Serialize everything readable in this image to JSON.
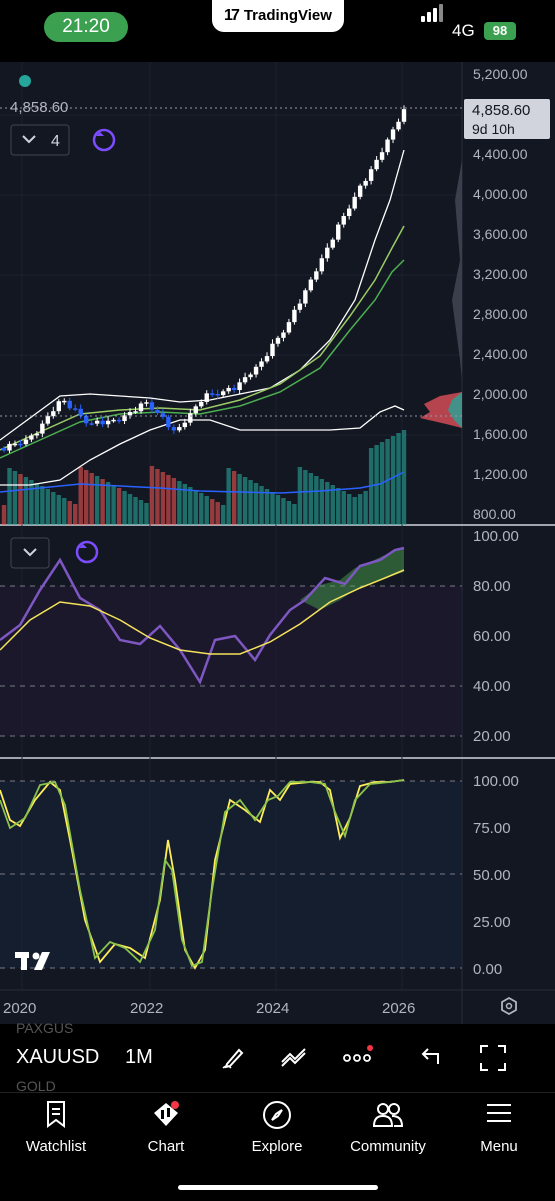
{
  "status_bar": {
    "time": "21:20",
    "app_banner": "TradingView",
    "network": "4G",
    "battery": "98"
  },
  "chart": {
    "last_price_label": "4,858.60",
    "price_tag": "4,858.60",
    "countdown": "9d 10h",
    "indicator_count": "4",
    "price_axis": [
      "5,200.00",
      "4,800.00",
      "4,400.00",
      "4,000.00",
      "3,600.00",
      "3,200.00",
      "2,800.00",
      "2,400.00",
      "2,000.00",
      "1,600.00",
      "1,200.00",
      "800.00"
    ],
    "rsi_axis": [
      "100.00",
      "80.00",
      "60.00",
      "40.00",
      "20.00"
    ],
    "stoch_axis": [
      "100.00",
      "75.00",
      "50.00",
      "25.00",
      "0.00"
    ],
    "time_axis": [
      "2020",
      "2022",
      "2024",
      "2026"
    ],
    "colors": {
      "bg": "#131722",
      "up": "#ffffff",
      "down": "#2962ff",
      "rsi": "#7e57c2",
      "rsi_ma": "#f5e35b",
      "stoch_k": "#cddc39",
      "stoch_d": "#ffee58",
      "bb": "#ffffff",
      "ema": "#4caf50"
    }
  },
  "chart_data": {
    "type": "line",
    "title": "",
    "x": [
      "2019-11",
      "2020-03",
      "2020-08",
      "2021-03",
      "2021-09",
      "2022-03",
      "2022-09",
      "2023-05",
      "2023-12",
      "2024-05",
      "2024-10",
      "2025-04",
      "2025-09",
      "2025-12",
      "2026-01"
    ],
    "series": [
      {
        "name": "",
        "values": [
          1470,
          1580,
          1970,
          1710,
          1760,
          1930,
          1630,
          1990,
          2060,
          2330,
          2740,
          3300,
          3850,
          4330,
          4858.6
        ]
      }
    ],
    "ylim": [
      800,
      5300
    ],
    "xlabel": "",
    "ylabel": "",
    "grid": true
  },
  "toolbar": {
    "symbol": "XAUUSD",
    "symbol_above": "PAXGUS",
    "symbol_below": "GOLD",
    "interval": "1M",
    "icons": [
      "draw-icon",
      "indicators-icon",
      "more-icon",
      "undo-icon",
      "fullscreen-icon"
    ]
  },
  "tabs": [
    {
      "label": "Watchlist",
      "icon": "bookmark-icon"
    },
    {
      "label": "Chart",
      "icon": "chart-icon"
    },
    {
      "label": "Explore",
      "icon": "compass-icon"
    },
    {
      "label": "Community",
      "icon": "people-icon"
    },
    {
      "label": "Menu",
      "icon": "menu-icon"
    }
  ]
}
